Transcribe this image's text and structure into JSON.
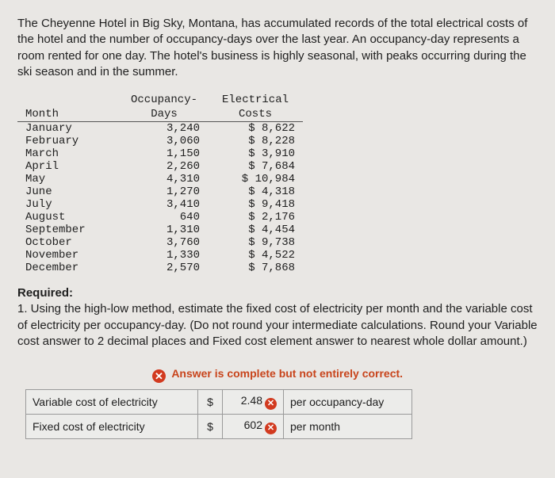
{
  "intro_text": "The Cheyenne Hotel in Big Sky, Montana, has accumulated records of the total electrical costs of the hotel and the number of occupancy-days over the last year. An occupancy-day represents a room rented for one day. The hotel's business is highly seasonal, with peaks occurring during the ski season and in the summer.",
  "headers": {
    "month": "Month",
    "occ_line1": "Occupancy-",
    "occ_line2": "Days",
    "cost_line1": "Electrical",
    "cost_line2": "Costs"
  },
  "rows": [
    {
      "month": "January",
      "days": "3,240",
      "cost": "$ 8,622"
    },
    {
      "month": "February",
      "days": "3,060",
      "cost": "$ 8,228"
    },
    {
      "month": "March",
      "days": "1,150",
      "cost": "$ 3,910"
    },
    {
      "month": "April",
      "days": "2,260",
      "cost": "$ 7,684"
    },
    {
      "month": "May",
      "days": "4,310",
      "cost": "$ 10,984"
    },
    {
      "month": "June",
      "days": "1,270",
      "cost": "$ 4,318"
    },
    {
      "month": "July",
      "days": "3,410",
      "cost": "$ 9,418"
    },
    {
      "month": "August",
      "days": "640",
      "cost": "$ 2,176"
    },
    {
      "month": "September",
      "days": "1,310",
      "cost": "$ 4,454"
    },
    {
      "month": "October",
      "days": "3,760",
      "cost": "$ 9,738"
    },
    {
      "month": "November",
      "days": "1,330",
      "cost": "$ 4,522"
    },
    {
      "month": "December",
      "days": "2,570",
      "cost": "$ 7,868"
    }
  ],
  "required": {
    "heading": "Required:",
    "body": "1. Using the high-low method, estimate the fixed cost of electricity per month and the variable cost of electricity per occupancy-day. (Do not round your intermediate calculations. Round your Variable cost answer to 2 decimal places and Fixed cost element answer to nearest whole dollar amount.)"
  },
  "banner": "Answer is complete but not entirely correct.",
  "answers": {
    "var_label": "Variable cost of electricity",
    "var_sym": "$",
    "var_val": "2.48",
    "var_unit": "per occupancy-day",
    "fix_label": "Fixed cost of electricity",
    "fix_sym": "$",
    "fix_val": "602",
    "fix_unit": "per month"
  },
  "styling": {
    "page_bg": "#e9e7e4",
    "text_color": "#202020",
    "mono_font": "Courier New",
    "sans_font": "Arial",
    "intro_fontsize": 15,
    "table_fontsize": 14,
    "banner_color": "#c8441b",
    "cross_bg": "#d23a1f",
    "cell_border": "#9a9a9a",
    "cell_bg": "#ececea"
  }
}
